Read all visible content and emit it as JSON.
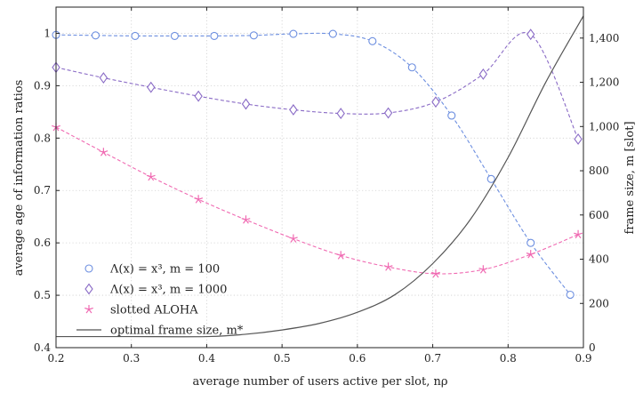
{
  "chart_data": {
    "type": "line",
    "title": "",
    "xlabel": "average number of users active per slot, nρ",
    "ylabel_left": "average age of information ratios",
    "ylabel_right": "frame size, m [slot]",
    "xlim": [
      0.2,
      0.9
    ],
    "ylim_left": [
      0.4,
      1.05
    ],
    "ylim_right": [
      0,
      1540
    ],
    "x_ticks": [
      "0.2",
      "0.3",
      "0.4",
      "0.5",
      "0.6",
      "0.7",
      "0.8",
      "0.9"
    ],
    "y_left_ticks": [
      "0.4",
      "0.5",
      "0.6",
      "0.7",
      "0.8",
      "0.9",
      "1"
    ],
    "y_right_ticks": [
      "0",
      "200",
      "400",
      "600",
      "800",
      "1,000",
      "1,200",
      "1,400"
    ],
    "grid": true,
    "legend_position": "bottom-left",
    "series": [
      {
        "name": "Λ(x) = x³, m = 100",
        "axis": "left",
        "color": "#6d8fe0",
        "marker": "circle",
        "style": "dashed",
        "x": [
          0.2,
          0.2525,
          0.305,
          0.3575,
          0.41,
          0.4625,
          0.515,
          0.5675,
          0.62,
          0.6725,
          0.725,
          0.7775,
          0.83,
          0.8825
        ],
        "y": [
          0.997,
          0.996,
          0.995,
          0.995,
          0.995,
          0.996,
          0.999,
          0.999,
          0.985,
          0.935,
          0.843,
          0.722,
          0.6,
          0.501
        ]
      },
      {
        "name": "Λ(x) = x³, m = 1000",
        "axis": "left",
        "color": "#8a6bc6",
        "marker": "diamond",
        "style": "dashed",
        "x": [
          0.2,
          0.263,
          0.326,
          0.389,
          0.452,
          0.515,
          0.578,
          0.641,
          0.704,
          0.767,
          0.83,
          0.893
        ],
        "y": [
          0.935,
          0.915,
          0.897,
          0.88,
          0.865,
          0.854,
          0.847,
          0.848,
          0.869,
          0.922,
          0.998,
          0.798
        ]
      },
      {
        "name": "slotted ALOHA",
        "axis": "left",
        "color": "#f06ab2",
        "marker": "star",
        "style": "dashed",
        "x": [
          0.2,
          0.263,
          0.326,
          0.389,
          0.452,
          0.515,
          0.578,
          0.641,
          0.704,
          0.767,
          0.83,
          0.893
        ],
        "y": [
          0.821,
          0.773,
          0.726,
          0.683,
          0.644,
          0.608,
          0.576,
          0.554,
          0.541,
          0.549,
          0.578,
          0.616
        ]
      },
      {
        "name": "optimal frame size, m*",
        "axis": "right",
        "color": "#555555",
        "marker": "none",
        "style": "solid",
        "x": [
          0.2,
          0.3,
          0.4,
          0.45,
          0.5,
          0.55,
          0.6,
          0.65,
          0.7,
          0.75,
          0.8,
          0.85,
          0.9
        ],
        "y": [
          50,
          50,
          50,
          60,
          80,
          110,
          160,
          240,
          380,
          580,
          860,
          1200,
          1500
        ]
      }
    ]
  }
}
